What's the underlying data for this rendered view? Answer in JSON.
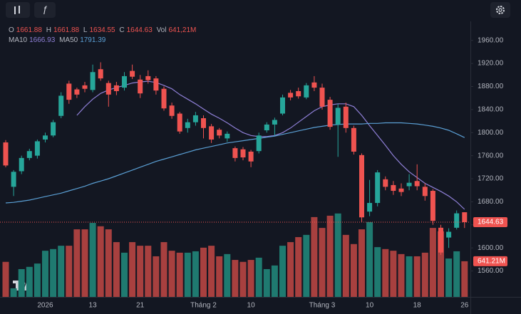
{
  "chart_data": {
    "type": "candlestick",
    "categories": [
      null,
      null,
      null,
      null,
      null,
      "2026",
      null,
      null,
      null,
      null,
      null,
      "13",
      null,
      null,
      null,
      null,
      null,
      "21",
      null,
      null,
      null,
      null,
      null,
      null,
      null,
      "Tháng 2",
      null,
      null,
      null,
      null,
      null,
      "10",
      null,
      null,
      null,
      null,
      null,
      null,
      null,
      null,
      "Tháng 3",
      null,
      null,
      null,
      null,
      null,
      "10",
      null,
      null,
      null,
      null,
      null,
      "18",
      null,
      null,
      null,
      null,
      null,
      "26"
    ],
    "open": [
      1783,
      1706,
      1733,
      1756,
      1760,
      1788,
      1795,
      1829,
      1885,
      1875,
      1882,
      1874,
      1910,
      1886,
      1882,
      1878,
      1907,
      1892,
      1898,
      1894,
      1876,
      1847,
      1833,
      1808,
      1818,
      1825,
      1811,
      1805,
      1790,
      1773,
      1771,
      1767,
      1768,
      1804,
      1814,
      1833,
      1869,
      1872,
      1861,
      1887,
      1878,
      1857,
      1814,
      1845,
      1808,
      1761,
      1663,
      1678,
      1719,
      1709,
      1703,
      1707,
      1716,
      1706,
      1699,
      1635,
      1618,
      1635,
      1661.88
    ],
    "high": [
      1787,
      1735,
      1760,
      1772,
      1788,
      1800,
      1822,
      1870,
      1890,
      1878,
      1888,
      1918,
      1922,
      1890,
      1888,
      1905,
      1918,
      1900,
      1908,
      1898,
      1880,
      1852,
      1836,
      1824,
      1836,
      1830,
      1815,
      1808,
      1802,
      1776,
      1775,
      1770,
      1800,
      1818,
      1826,
      1866,
      1874,
      1878,
      1886,
      1898,
      1885,
      1862,
      1850,
      1852,
      1812,
      1764,
      1718,
      1735,
      1724,
      1716,
      1712,
      1728,
      1745,
      1712,
      1702,
      1640,
      1634,
      1665,
      1661.88
    ],
    "low": [
      1740,
      1690,
      1728,
      1752,
      1755,
      1783,
      1792,
      1825,
      1850,
      1860,
      1870,
      1870,
      1890,
      1845,
      1865,
      1873,
      1893,
      1860,
      1885,
      1866,
      1838,
      1824,
      1798,
      1800,
      1812,
      1790,
      1782,
      1790,
      1784,
      1750,
      1752,
      1740,
      1764,
      1800,
      1795,
      1830,
      1856,
      1859,
      1858,
      1872,
      1840,
      1805,
      1758,
      1800,
      1762,
      1645,
      1655,
      1672,
      1700,
      1692,
      1690,
      1700,
      1700,
      1682,
      1640,
      1588,
      1600,
      1632,
      1634.55
    ],
    "close": [
      1743,
      1732,
      1756,
      1768,
      1785,
      1795,
      1818,
      1864,
      1857,
      1866,
      1876,
      1905,
      1894,
      1866,
      1872,
      1898,
      1897,
      1868,
      1891,
      1873,
      1842,
      1829,
      1802,
      1818,
      1830,
      1808,
      1788,
      1795,
      1798,
      1756,
      1757,
      1750,
      1795,
      1814,
      1822,
      1861,
      1861,
      1863,
      1882,
      1878,
      1845,
      1810,
      1843,
      1808,
      1767,
      1653,
      1678,
      1731,
      1706,
      1699,
      1697,
      1713,
      1707,
      1690,
      1647,
      1592,
      1628,
      1660,
      1644.63
    ],
    "up_color": "#26a69a",
    "down_color": "#ef5350",
    "ylim": [
      1515,
      1993
    ],
    "yticks": [
      {
        "value": 1560,
        "label": "1560.00"
      },
      {
        "value": 1600,
        "label": "1600.00"
      },
      {
        "value": 1640,
        "label": "1640.00"
      },
      {
        "value": 1680,
        "label": "1680.00"
      },
      {
        "value": 1720,
        "label": "1720.00"
      },
      {
        "value": 1760,
        "label": "1760.00"
      },
      {
        "value": 1800,
        "label": "1800.00"
      },
      {
        "value": 1840,
        "label": "1840.00"
      },
      {
        "value": 1880,
        "label": "1880.00"
      },
      {
        "value": 1920,
        "label": "1920.00"
      },
      {
        "value": 1960,
        "label": "1960.00"
      }
    ],
    "ma": [
      {
        "name": "MA10",
        "color": "#8e7fd6",
        "values": [
          null,
          null,
          null,
          null,
          null,
          null,
          null,
          null,
          null,
          1830,
          1845,
          1858,
          1868,
          1874,
          1878,
          1882,
          1886,
          1888,
          1889,
          1887,
          1882,
          1876,
          1866,
          1858,
          1850,
          1841,
          1832,
          1825,
          1817,
          1808,
          1800,
          1795,
          1793,
          1793,
          1795,
          1800,
          1808,
          1818,
          1828,
          1838,
          1845,
          1848,
          1850,
          1850,
          1845,
          1830,
          1812,
          1795,
          1778,
          1760,
          1745,
          1732,
          1722,
          1712,
          1705,
          1698,
          1690,
          1680,
          1666.93
        ]
      },
      {
        "name": "MA50",
        "color": "#5a9fd4",
        "values": [
          1678,
          1679,
          1681,
          1683,
          1686,
          1689,
          1692,
          1695,
          1699,
          1703,
          1707,
          1712,
          1716,
          1720,
          1725,
          1730,
          1735,
          1740,
          1745,
          1750,
          1754,
          1758,
          1762,
          1766,
          1770,
          1773,
          1776,
          1779,
          1782,
          1784,
          1786,
          1788,
          1790,
          1792,
          1794,
          1797,
          1800,
          1803,
          1806,
          1809,
          1811,
          1813,
          1814,
          1815,
          1815,
          1815,
          1816,
          1816,
          1817,
          1817,
          1817,
          1816,
          1815,
          1813,
          1811,
          1808,
          1804,
          1798,
          1791.39
        ]
      }
    ],
    "volume": {
      "values": [
        630,
        155,
        500,
        540,
        600,
        830,
        860,
        920,
        920,
        1215,
        1215,
        1330,
        1270,
        1215,
        985,
        795,
        985,
        920,
        920,
        730,
        985,
        830,
        795,
        795,
        820,
        885,
        920,
        730,
        770,
        665,
        630,
        665,
        705,
        500,
        565,
        920,
        985,
        1075,
        1115,
        1435,
        1240,
        1460,
        1500,
        1115,
        950,
        1215,
        1345,
        895,
        860,
        830,
        770,
        730,
        730,
        795,
        1240,
        1180,
        690,
        820,
        641.21
      ],
      "ylim": [
        0,
        1600
      ],
      "up_color": "#1f7a70",
      "down_color": "#a8403f",
      "last_value_label": "641.21M"
    },
    "legend": {
      "open": "O",
      "high": "H",
      "low": "L",
      "close": "C",
      "vol": "Vol",
      "vol_value": "641,21M"
    }
  }
}
